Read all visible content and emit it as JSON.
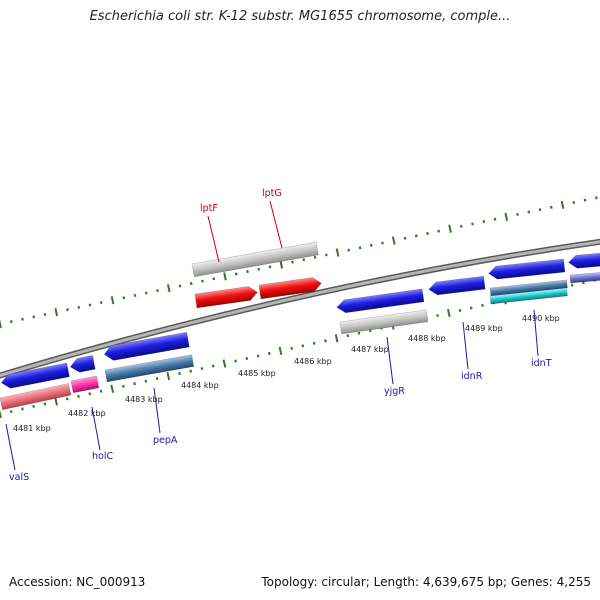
{
  "title": "Escherichia coli str. K-12 substr. MG1655 chromosome, comple...",
  "footer": {
    "accession": "Accession: NC_000913",
    "summary": "Topology: circular; Length: 4,639,675 bp; Genes: 4,255"
  },
  "scale": {
    "ticks": [
      {
        "label": "4481 kbp"
      },
      {
        "label": "4482 kbp"
      },
      {
        "label": "4483 kbp"
      },
      {
        "label": "4484 kbp"
      },
      {
        "label": "4485 kbp"
      },
      {
        "label": "4486 kbp"
      },
      {
        "label": "4487 kbp"
      },
      {
        "label": "4488 kbp"
      },
      {
        "label": "4489 kbp"
      },
      {
        "label": "4490 kbp"
      }
    ]
  },
  "gene_labels": [
    {
      "name": "lptF",
      "color": "#cc0000"
    },
    {
      "name": "lptG",
      "color": "#cc0000"
    },
    {
      "name": "valS",
      "color": "#1a1aa8"
    },
    {
      "name": "holC",
      "color": "#1a1aa8"
    },
    {
      "name": "pepA",
      "color": "#1a1aa8"
    },
    {
      "name": "yjgR",
      "color": "#1a1aa8"
    },
    {
      "name": "idnR",
      "color": "#1a1aa8"
    },
    {
      "name": "idnT",
      "color": "#1a1aa8"
    }
  ],
  "colors": {
    "backbone": "#8a8a8a",
    "tick": "#2e7d1e",
    "forward_gene": "#1f1fe0",
    "red_gene": "#ee1111",
    "pseudo_gene": "#b8b8b8",
    "pink_gene": "#e8707a",
    "magenta_gene": "#ff33aa",
    "steel_gene": "#4a7aaa",
    "cyan_gene": "#22c8cc"
  }
}
